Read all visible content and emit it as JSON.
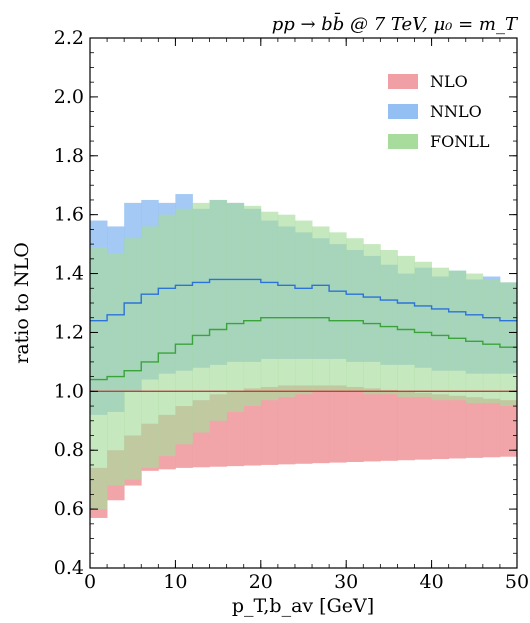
{
  "chart_data": {
    "type": "area",
    "title": "pp → bb̄ @ 7 TeV, μ₀ = m_T",
    "xlabel": "p_T,b_av [GeV]",
    "ylabel": "ratio to NLO",
    "xlim": [
      0,
      50
    ],
    "ylim": [
      0.4,
      2.2
    ],
    "x_ticks": [
      0,
      10,
      20,
      30,
      40,
      50
    ],
    "x_tick_labels": [
      "0",
      "10",
      "20",
      "30",
      "40",
      "50"
    ],
    "y_ticks": [
      0.4,
      0.6,
      0.8,
      1.0,
      1.2,
      1.4,
      1.6,
      1.8,
      2.0,
      2.2
    ],
    "y_tick_labels": [
      "0.4",
      "0.6",
      "0.8",
      "1.0",
      "1.2",
      "1.4",
      "1.6",
      "1.8",
      "2.0",
      "2.2"
    ],
    "legend_position": "top-right",
    "bin_edges": [
      0,
      2,
      4,
      6,
      8,
      10,
      12,
      14,
      16,
      18,
      20,
      22,
      24,
      26,
      28,
      30,
      32,
      34,
      36,
      38,
      40,
      42,
      44,
      46,
      48,
      50
    ],
    "series": [
      {
        "name": "NLO",
        "color": "#f0a0a4",
        "band_low": [
          0.57,
          0.63,
          0.68,
          0.73,
          0.735,
          0.74,
          0.742,
          0.744,
          0.746,
          0.748,
          0.75,
          0.752,
          0.754,
          0.756,
          0.758,
          0.76,
          0.762,
          0.764,
          0.766,
          0.768,
          0.77,
          0.772,
          0.774,
          0.776,
          0.778
        ],
        "band_high": [
          0.74,
          0.8,
          0.85,
          0.89,
          0.92,
          0.95,
          0.97,
          0.99,
          1.0,
          1.01,
          1.015,
          1.02,
          1.02,
          1.02,
          1.02,
          1.015,
          1.01,
          1.005,
          1.0,
          0.995,
          0.99,
          0.985,
          0.98,
          0.975,
          0.97
        ],
        "central": [
          1.0,
          1.0,
          1.0,
          1.0,
          1.0,
          1.0,
          1.0,
          1.0,
          1.0,
          1.0,
          1.0,
          1.0,
          1.0,
          1.0,
          1.0,
          1.0,
          1.0,
          1.0,
          1.0,
          1.0,
          1.0,
          1.0,
          1.0,
          1.0,
          1.0
        ]
      },
      {
        "name": "NNLO",
        "color": "#93bff2",
        "band_low": [
          0.92,
          0.93,
          1.0,
          1.04,
          1.06,
          1.07,
          1.08,
          1.09,
          1.1,
          1.1,
          1.11,
          1.11,
          1.11,
          1.11,
          1.11,
          1.1,
          1.1,
          1.09,
          1.09,
          1.08,
          1.07,
          1.07,
          1.06,
          1.06,
          1.06
        ],
        "band_high": [
          1.58,
          1.56,
          1.64,
          1.65,
          1.64,
          1.67,
          1.62,
          1.65,
          1.64,
          1.62,
          1.58,
          1.56,
          1.54,
          1.52,
          1.5,
          1.48,
          1.46,
          1.43,
          1.4,
          1.42,
          1.39,
          1.41,
          1.38,
          1.39,
          1.37
        ],
        "central": [
          1.24,
          1.26,
          1.3,
          1.33,
          1.35,
          1.36,
          1.37,
          1.38,
          1.38,
          1.38,
          1.37,
          1.36,
          1.35,
          1.36,
          1.34,
          1.33,
          1.32,
          1.31,
          1.3,
          1.29,
          1.28,
          1.27,
          1.26,
          1.25,
          1.24
        ]
      },
      {
        "name": "FONLL",
        "color": "#a8dc9c",
        "band_low": [
          0.6,
          0.68,
          0.7,
          0.74,
          0.78,
          0.82,
          0.86,
          0.9,
          0.93,
          0.95,
          0.97,
          0.98,
          0.99,
          1.0,
          1.0,
          1.0,
          0.99,
          0.99,
          0.98,
          0.98,
          0.97,
          0.97,
          0.96,
          0.96,
          0.95
        ],
        "band_high": [
          1.49,
          1.47,
          1.52,
          1.56,
          1.6,
          1.62,
          1.64,
          1.65,
          1.64,
          1.63,
          1.61,
          1.6,
          1.58,
          1.56,
          1.54,
          1.52,
          1.5,
          1.48,
          1.46,
          1.44,
          1.42,
          1.41,
          1.4,
          1.38,
          1.37
        ],
        "central": [
          1.04,
          1.05,
          1.07,
          1.1,
          1.13,
          1.16,
          1.19,
          1.21,
          1.23,
          1.24,
          1.25,
          1.25,
          1.25,
          1.25,
          1.24,
          1.24,
          1.23,
          1.22,
          1.21,
          1.2,
          1.19,
          1.18,
          1.17,
          1.16,
          1.15
        ]
      }
    ]
  },
  "colors": {
    "nlo_line": "#d03a3a",
    "nnlo_line": "#2b72d9",
    "fonll_line": "#3aa33a",
    "overlap_tint": "#5b9b9f"
  }
}
